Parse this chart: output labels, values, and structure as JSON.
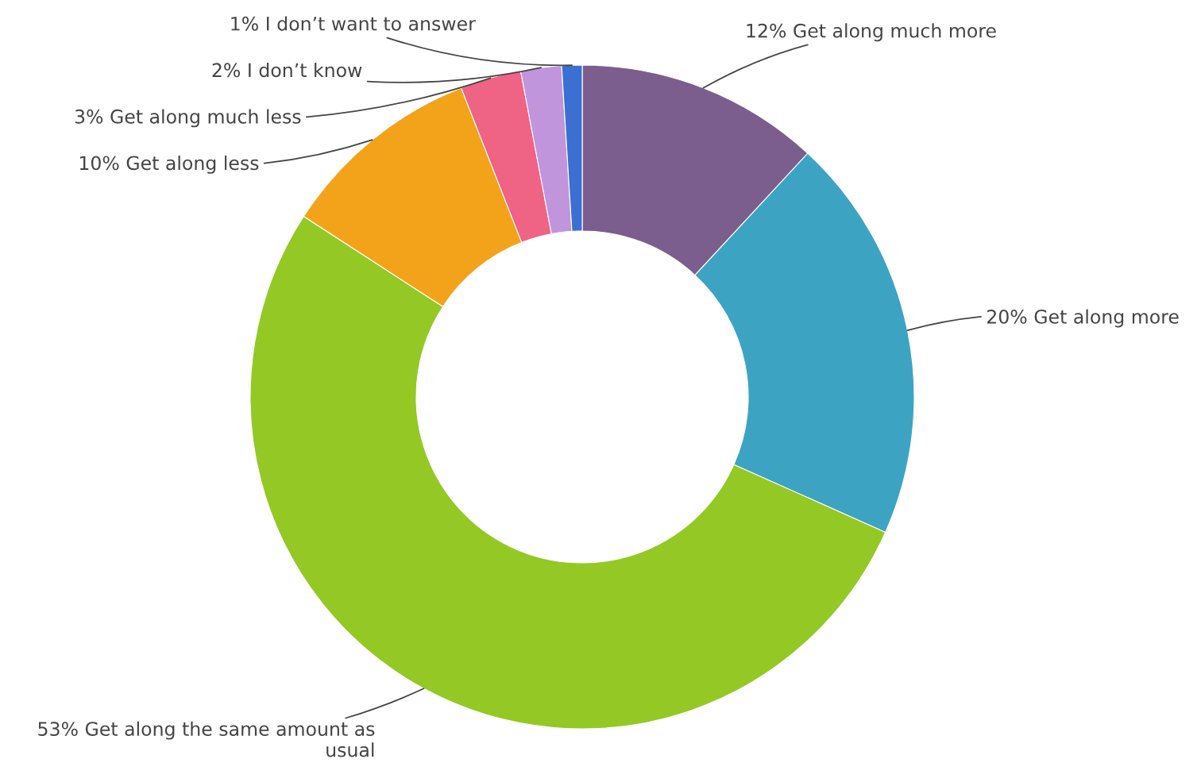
{
  "chart_data": {
    "type": "donut",
    "categories": [
      "12% Get along much more",
      "20% Get along more",
      "53% Get along the same amount as usual",
      "10% Get along less",
      "3% Get along much less",
      "2% I don’t know",
      "1% I don’t want to answer"
    ],
    "values": [
      12,
      20,
      53,
      10,
      3,
      2,
      1
    ],
    "colors": [
      "#7b5e8e",
      "#3da3c3",
      "#94c825",
      "#f3a31a",
      "#ef6384",
      "#c195dc",
      "#3b6fd1"
    ],
    "legend": false
  }
}
